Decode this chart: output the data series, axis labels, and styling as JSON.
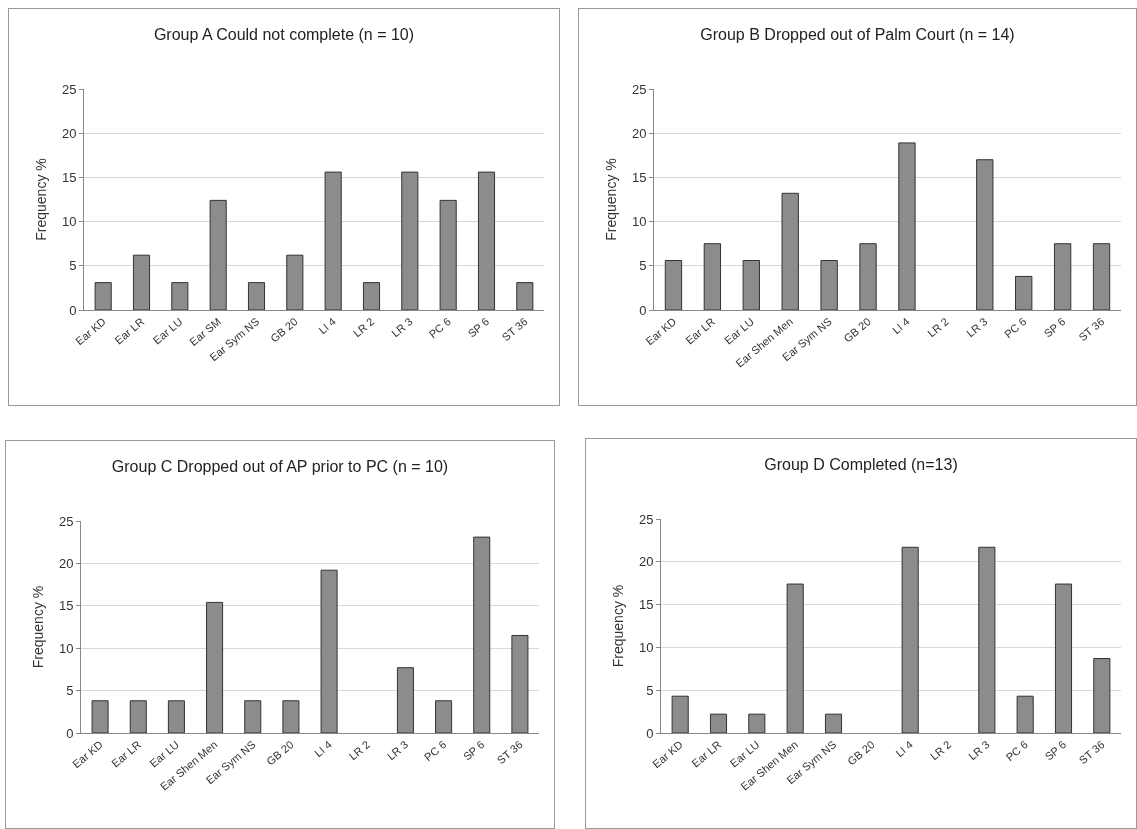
{
  "chart_data": [
    {
      "type": "bar",
      "title": "Group A Could not complete (n = 10)",
      "ylabel": "Frequency %",
      "categories": [
        "Ear KD",
        "Ear LR",
        "Ear LU",
        "Ear SM",
        "Ear Sym NS",
        "GB 20",
        "LI 4",
        "LR 2",
        "LR 3",
        "PC 6",
        "SP 6",
        "ST 36"
      ],
      "values": [
        3.1,
        6.2,
        3.1,
        12.4,
        3.1,
        6.2,
        15.6,
        3.1,
        15.6,
        12.4,
        15.6,
        3.1
      ],
      "color": "#8c8c8c",
      "ylim": [
        0,
        25
      ],
      "yticks": [
        0,
        5,
        10,
        15,
        20,
        25
      ],
      "grid": "y",
      "legend": false
    },
    {
      "type": "bar",
      "title": "Group B Dropped out of Palm Court (n = 14)",
      "ylabel": "Frequency %",
      "categories": [
        "Ear KD",
        "Ear LR",
        "Ear LU",
        "Ear Shen Men",
        "Ear Sym NS",
        "GB 20",
        "LI 4",
        "LR 2",
        "LR 3",
        "PC 6",
        "SP 6",
        "ST 36"
      ],
      "values": [
        5.6,
        7.5,
        5.6,
        13.2,
        5.6,
        7.5,
        18.9,
        0,
        17,
        3.8,
        7.5,
        7.5
      ],
      "color": "#8c8c8c",
      "ylim": [
        0,
        25
      ],
      "yticks": [
        0,
        5,
        10,
        15,
        20,
        25
      ],
      "grid": "y",
      "legend": false
    },
    {
      "type": "bar",
      "title": "Group C Dropped out of AP prior to PC (n = 10)",
      "ylabel": "Frequency %",
      "categories": [
        "Ear KD",
        "Ear LR",
        "Ear LU",
        "Ear Shen Men",
        "Ear Sym NS",
        "GB 20",
        "LI 4",
        "LR 2",
        "LR 3",
        "PC 6",
        "SP 6",
        "ST 36"
      ],
      "values": [
        3.8,
        3.8,
        3.8,
        15.4,
        3.8,
        3.8,
        19.2,
        0,
        7.7,
        3.8,
        23.1,
        11.5
      ],
      "color": "#8c8c8c",
      "ylim": [
        0,
        25
      ],
      "yticks": [
        0,
        5,
        10,
        15,
        20,
        25
      ],
      "grid": "y",
      "legend": false
    },
    {
      "type": "bar",
      "title": "Group D Completed (n=13)",
      "ylabel": "Frequency %",
      "categories": [
        "Ear KD",
        "Ear LR",
        "Ear LU",
        "Ear Shen Men",
        "Ear Sym NS",
        "GB 20",
        "LI 4",
        "LR 2",
        "LR 3",
        "PC 6",
        "SP 6",
        "ST 36"
      ],
      "values": [
        4.3,
        2.2,
        2.2,
        17.4,
        2.2,
        0,
        21.7,
        0,
        21.7,
        4.3,
        17.4,
        8.7
      ],
      "color": "#8c8c8c",
      "ylim": [
        0,
        25
      ],
      "yticks": [
        0,
        5,
        10,
        15,
        20,
        25
      ],
      "grid": "y",
      "legend": false
    }
  ]
}
